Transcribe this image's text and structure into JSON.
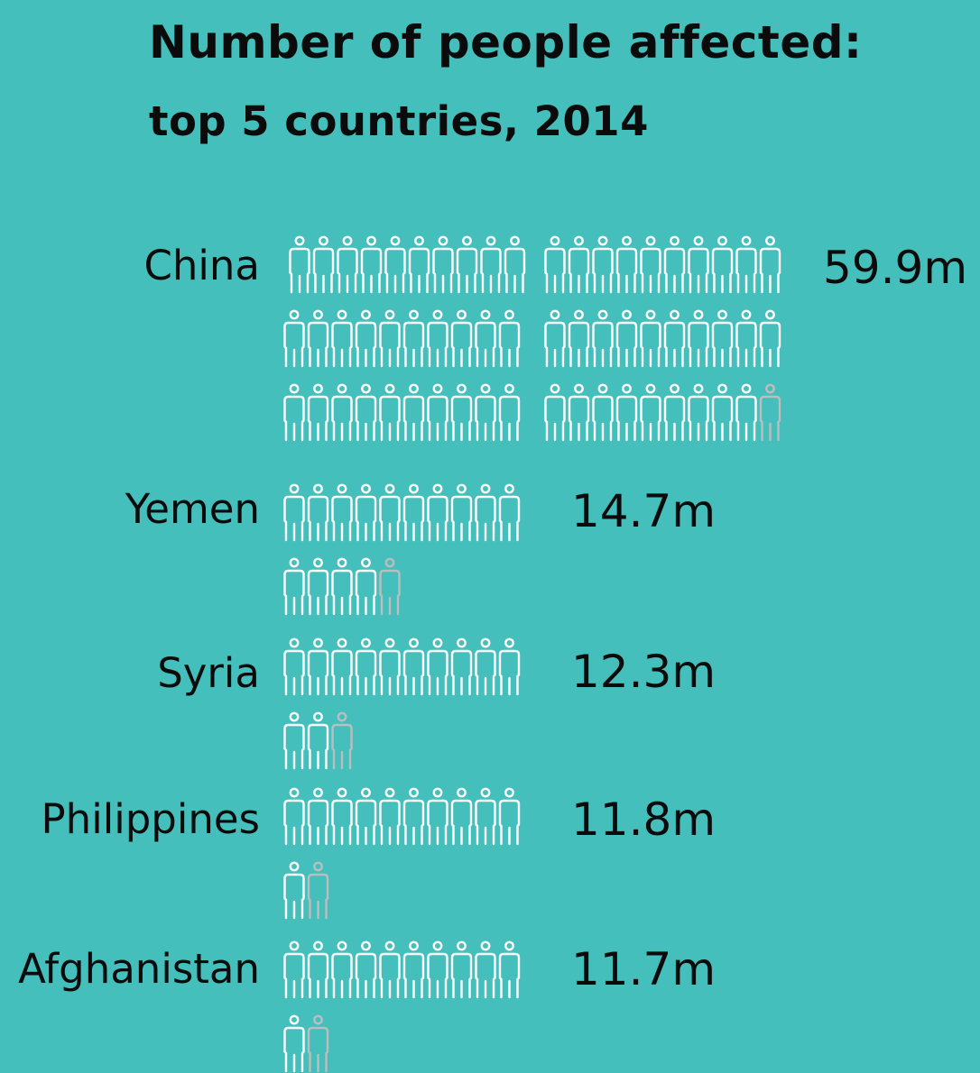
{
  "title": "Number of people affected:",
  "subtitle": "top 5 countries, 2014",
  "colors": {
    "background": "#44bfbc",
    "icon_full": "#ffffff",
    "icon_partial": "#bdbdbd",
    "text": "#0b0b0b"
  },
  "icon": "person-icon",
  "chart_data": {
    "type": "pictogram",
    "title": "Number of people affected:",
    "subtitle": "top 5 countries, 2014",
    "unit": "million people",
    "categories": [
      "China",
      "Yemen",
      "Syria",
      "Philippines",
      "Afghanistan"
    ],
    "values": [
      59.9,
      14.7,
      12.3,
      11.8,
      11.7
    ],
    "value_labels": [
      "59.9m",
      "14.7m",
      "12.3m",
      "11.8m",
      "11.7m"
    ]
  }
}
